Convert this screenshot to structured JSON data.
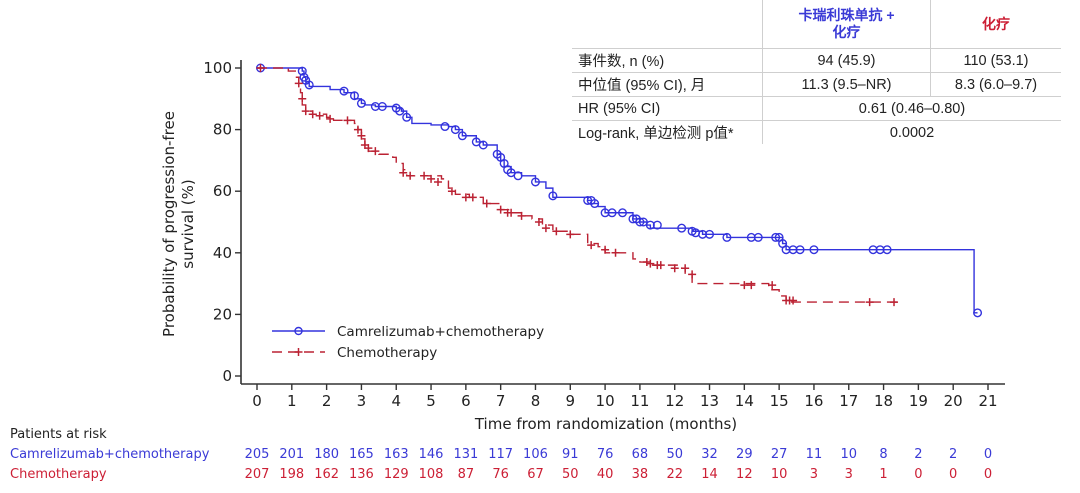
{
  "colors": {
    "treatment": "#3333dd",
    "control": "#bb2233",
    "treatment_text": "#3a3ad6",
    "control_text": "#cc1f35",
    "axis": "#333333"
  },
  "table": {
    "header": {
      "treatment_line1": "卡瑞利珠单抗 +",
      "treatment_line2": "化疗",
      "control": "化疗"
    },
    "rows": [
      {
        "label": "事件数, n (%)",
        "treatment": "94 (45.9)",
        "control": "110 (53.1)"
      },
      {
        "label": "中位值 (95% CI), 月",
        "treatment": "11.3 (9.5–NR)",
        "control": "8.3 (6.0–9.7)"
      },
      {
        "label": "HR (95% CI)",
        "combined": "0.61 (0.46–0.80)"
      },
      {
        "label": "Log-rank, 单边检测 p值*",
        "combined": "0.0002"
      }
    ]
  },
  "risk_table": {
    "title": "Patients at risk",
    "rows": [
      {
        "label": "Camrelizumab+chemotherapy",
        "values": [
          "205",
          "201",
          "180",
          "165",
          "163",
          "146",
          "131",
          "117",
          "106",
          "91",
          "76",
          "68",
          "50",
          "32",
          "29",
          "27",
          "11",
          "10",
          "8",
          "2",
          "2",
          "0"
        ]
      },
      {
        "label": "Chemotherapy",
        "values": [
          "207",
          "198",
          "162",
          "136",
          "129",
          "108",
          "87",
          "76",
          "67",
          "50",
          "40",
          "38",
          "22",
          "14",
          "12",
          "10",
          "3",
          "3",
          "1",
          "0",
          "0",
          "0"
        ]
      }
    ]
  },
  "chart_data": {
    "type": "line",
    "subtype": "kaplan-meier",
    "title": "",
    "xlabel": "Time from randomization (months)",
    "ylabel": "Probability of progression-free survival (%)",
    "ylabel_lines": [
      "Probability of progression-free",
      "survival (%)"
    ],
    "xlim": [
      0,
      21
    ],
    "ylim": [
      0,
      100
    ],
    "xticks": [
      0,
      1,
      2,
      3,
      4,
      5,
      6,
      7,
      8,
      9,
      10,
      11,
      12,
      13,
      14,
      15,
      16,
      17,
      18,
      19,
      20,
      21
    ],
    "yticks": [
      0,
      20,
      40,
      60,
      80,
      100
    ],
    "grid": false,
    "legend": {
      "position": "bottom-left",
      "entries": [
        "Camrelizumab+chemotherapy",
        "Chemotherapy"
      ]
    },
    "series": [
      {
        "name": "Camrelizumab+chemotherapy",
        "style": "solid",
        "marker": "circle",
        "steps": [
          [
            0,
            100
          ],
          [
            1.3,
            99
          ],
          [
            1.35,
            97
          ],
          [
            1.4,
            95.5
          ],
          [
            1.5,
            94
          ],
          [
            2.1,
            93
          ],
          [
            2.5,
            92
          ],
          [
            2.8,
            90
          ],
          [
            3.0,
            88.5
          ],
          [
            3.1,
            88
          ],
          [
            3.4,
            87.5
          ],
          [
            4.0,
            87
          ],
          [
            4.15,
            86
          ],
          [
            4.3,
            84
          ],
          [
            4.45,
            82
          ],
          [
            5.0,
            81.5
          ],
          [
            5.5,
            81
          ],
          [
            5.7,
            80
          ],
          [
            5.9,
            78
          ],
          [
            6.3,
            76
          ],
          [
            6.5,
            75
          ],
          [
            6.9,
            72
          ],
          [
            7.0,
            70
          ],
          [
            7.1,
            68
          ],
          [
            7.3,
            66
          ],
          [
            7.6,
            65
          ],
          [
            8.0,
            63
          ],
          [
            8.3,
            61
          ],
          [
            8.5,
            58
          ],
          [
            9.2,
            58
          ],
          [
            9.5,
            57
          ],
          [
            9.6,
            56
          ],
          [
            9.8,
            55
          ],
          [
            10.0,
            53
          ],
          [
            10.5,
            53
          ],
          [
            10.8,
            51
          ],
          [
            11.0,
            50
          ],
          [
            11.2,
            49
          ],
          [
            11.3,
            48
          ],
          [
            12.2,
            48
          ],
          [
            12.5,
            47
          ],
          [
            12.8,
            46
          ],
          [
            13.2,
            46
          ],
          [
            13.5,
            45
          ],
          [
            14.0,
            45
          ],
          [
            15.0,
            45
          ],
          [
            15.1,
            43
          ],
          [
            15.2,
            41
          ],
          [
            20.6,
            41
          ],
          [
            20.6,
            20.5
          ],
          [
            20.7,
            20.5
          ]
        ],
        "censored": [
          [
            0.1,
            100
          ],
          [
            1.3,
            99
          ],
          [
            1.35,
            97
          ],
          [
            1.4,
            96
          ],
          [
            1.5,
            94.5
          ],
          [
            2.5,
            92.5
          ],
          [
            2.8,
            91
          ],
          [
            3.0,
            88.5
          ],
          [
            3.4,
            87.5
          ],
          [
            3.6,
            87.5
          ],
          [
            4.0,
            87
          ],
          [
            4.1,
            86
          ],
          [
            4.3,
            84
          ],
          [
            5.4,
            81
          ],
          [
            5.7,
            80
          ],
          [
            5.9,
            78
          ],
          [
            6.3,
            76
          ],
          [
            6.5,
            75
          ],
          [
            6.9,
            72
          ],
          [
            7.0,
            71
          ],
          [
            7.1,
            69
          ],
          [
            7.2,
            67
          ],
          [
            7.3,
            66
          ],
          [
            7.5,
            65
          ],
          [
            8.0,
            63
          ],
          [
            8.5,
            58.5
          ],
          [
            9.5,
            57
          ],
          [
            9.6,
            57
          ],
          [
            9.7,
            56
          ],
          [
            10.0,
            53
          ],
          [
            10.2,
            53
          ],
          [
            10.5,
            53
          ],
          [
            10.8,
            51
          ],
          [
            10.9,
            51
          ],
          [
            11.0,
            50
          ],
          [
            11.1,
            50
          ],
          [
            11.3,
            49
          ],
          [
            11.5,
            49
          ],
          [
            12.2,
            48
          ],
          [
            12.5,
            47
          ],
          [
            12.6,
            46.5
          ],
          [
            12.8,
            46
          ],
          [
            13.0,
            46
          ],
          [
            13.5,
            45
          ],
          [
            14.2,
            45
          ],
          [
            14.4,
            45
          ],
          [
            14.9,
            45
          ],
          [
            15.0,
            45
          ],
          [
            15.1,
            43
          ],
          [
            15.2,
            41
          ],
          [
            15.4,
            41
          ],
          [
            15.6,
            41
          ],
          [
            16.0,
            41
          ],
          [
            17.7,
            41
          ],
          [
            17.9,
            41
          ],
          [
            18.1,
            41
          ],
          [
            20.7,
            20.5
          ]
        ]
      },
      {
        "name": "Chemotherapy",
        "style": "dashed",
        "marker": "plus",
        "steps": [
          [
            0,
            100
          ],
          [
            0.9,
            99
          ],
          [
            1.1,
            97
          ],
          [
            1.2,
            95
          ],
          [
            1.25,
            92
          ],
          [
            1.3,
            88
          ],
          [
            1.4,
            86
          ],
          [
            1.6,
            85
          ],
          [
            2.0,
            84
          ],
          [
            2.2,
            83
          ],
          [
            2.8,
            82
          ],
          [
            2.9,
            80
          ],
          [
            3.0,
            77
          ],
          [
            3.1,
            74
          ],
          [
            3.2,
            73
          ],
          [
            3.5,
            72
          ],
          [
            3.9,
            71
          ],
          [
            4.0,
            69
          ],
          [
            4.2,
            67
          ],
          [
            4.3,
            65
          ],
          [
            4.8,
            65
          ],
          [
            5.3,
            64
          ],
          [
            5.5,
            61
          ],
          [
            5.7,
            59
          ],
          [
            6.1,
            58
          ],
          [
            6.5,
            56
          ],
          [
            7.0,
            54
          ],
          [
            7.3,
            53
          ],
          [
            7.6,
            52
          ],
          [
            7.9,
            51
          ],
          [
            8.2,
            49
          ],
          [
            8.5,
            47
          ],
          [
            9.0,
            46
          ],
          [
            9.5,
            43
          ],
          [
            9.8,
            42
          ],
          [
            10.0,
            40
          ],
          [
            10.5,
            40
          ],
          [
            10.8,
            38
          ],
          [
            11.0,
            37
          ],
          [
            11.2,
            36
          ],
          [
            11.6,
            36
          ],
          [
            12.2,
            35
          ],
          [
            12.3,
            33
          ],
          [
            12.5,
            30
          ],
          [
            13.2,
            30
          ],
          [
            14.5,
            30
          ],
          [
            14.7,
            28
          ],
          [
            15.0,
            26
          ],
          [
            15.2,
            24
          ],
          [
            18.5,
            24
          ]
        ],
        "censored": [
          [
            0.1,
            100
          ],
          [
            1.2,
            95
          ],
          [
            1.3,
            90
          ],
          [
            1.4,
            86
          ],
          [
            1.6,
            85
          ],
          [
            1.8,
            84.5
          ],
          [
            2.1,
            83.5
          ],
          [
            2.6,
            83
          ],
          [
            2.9,
            80
          ],
          [
            3.0,
            78
          ],
          [
            3.1,
            75
          ],
          [
            3.2,
            74
          ],
          [
            3.4,
            73
          ],
          [
            4.2,
            66
          ],
          [
            4.4,
            65
          ],
          [
            4.8,
            65
          ],
          [
            5.0,
            64
          ],
          [
            5.2,
            63
          ],
          [
            5.6,
            60
          ],
          [
            6.0,
            58
          ],
          [
            6.2,
            58
          ],
          [
            6.6,
            56
          ],
          [
            7.0,
            54
          ],
          [
            7.2,
            53
          ],
          [
            7.3,
            53
          ],
          [
            7.6,
            52
          ],
          [
            8.1,
            50
          ],
          [
            8.3,
            48
          ],
          [
            8.6,
            47
          ],
          [
            9.0,
            46
          ],
          [
            9.6,
            42.5
          ],
          [
            10.0,
            41
          ],
          [
            10.3,
            40
          ],
          [
            11.2,
            37
          ],
          [
            11.3,
            36.5
          ],
          [
            11.5,
            36
          ],
          [
            11.6,
            36
          ],
          [
            12.0,
            35
          ],
          [
            12.3,
            35
          ],
          [
            12.5,
            33
          ],
          [
            14.0,
            29.5
          ],
          [
            14.2,
            29.5
          ],
          [
            14.8,
            29.5
          ],
          [
            15.2,
            24.5
          ],
          [
            15.3,
            24.5
          ],
          [
            15.4,
            24.5
          ],
          [
            17.6,
            24
          ],
          [
            18.3,
            24
          ]
        ]
      }
    ]
  }
}
